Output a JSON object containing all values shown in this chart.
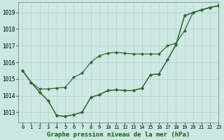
{
  "title": "Graphe pression niveau de la mer (hPa)",
  "background_color": "#c8e8e0",
  "plot_bg_color": "#d0e8e4",
  "grid_color": "#b0d8d0",
  "line_color": "#2d6a2d",
  "marker_color": "#2d6a2d",
  "xlim": [
    -0.5,
    23
  ],
  "ylim": [
    1012.4,
    1019.6
  ],
  "yticks": [
    1013,
    1014,
    1015,
    1016,
    1017,
    1018,
    1019
  ],
  "xticks": [
    0,
    1,
    2,
    3,
    4,
    5,
    6,
    7,
    8,
    9,
    10,
    11,
    12,
    13,
    14,
    15,
    16,
    17,
    18,
    19,
    20,
    21,
    22,
    23
  ],
  "s1": [
    1015.5,
    1014.8,
    1014.2,
    1013.7,
    1012.8,
    1012.75,
    1012.85,
    1013.0,
    1013.9,
    1014.05,
    1014.3,
    1014.35,
    1014.3,
    1014.3,
    1014.45,
    1015.25,
    1015.3,
    1016.15,
    1017.05,
    1018.8,
    1019.0,
    1019.15,
    1019.3,
    1019.4
  ],
  "s2": [
    1015.5,
    1014.8,
    1014.4,
    1014.4,
    1014.45,
    1014.5,
    1015.1,
    1015.35,
    1016.0,
    1016.4,
    1016.55,
    1016.6,
    1016.55,
    1016.5,
    1016.5,
    1016.5,
    1016.5,
    1017.0,
    1017.15,
    1017.9,
    1019.0,
    1019.15,
    1019.3,
    1019.4
  ],
  "s3": [
    1015.5,
    1014.8,
    1014.2,
    1013.7,
    1012.8,
    1012.75,
    1012.85,
    1013.0,
    1013.9,
    1014.05,
    1014.3,
    1014.35,
    1014.3,
    1014.3,
    1014.45,
    1015.25,
    1015.3,
    1016.15,
    1017.05,
    1018.8,
    1019.0,
    1019.15,
    1019.3,
    1019.4
  ]
}
